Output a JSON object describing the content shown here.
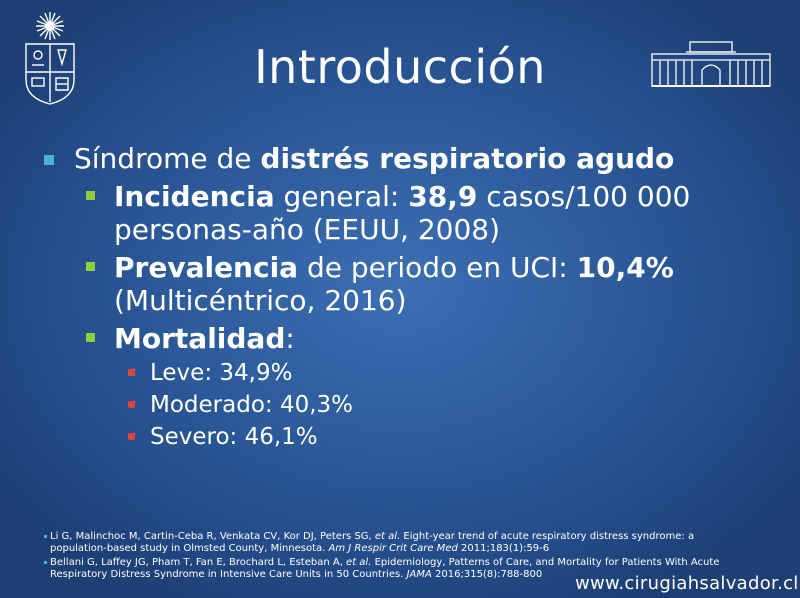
{
  "slide": {
    "title": "Introducción",
    "bullet1": {
      "prefix": "Síndrome de ",
      "bold": "distrés respiratorio agudo"
    },
    "incidencia": {
      "bold": "Incidencia",
      "mid": " general: ",
      "bold2": "38,9",
      "rest": " casos/100 000 personas-año (EEUU, 2008)"
    },
    "prevalencia": {
      "bold": "Prevalencia",
      "mid": " de periodo en UCI: ",
      "bold2": "10,4%",
      "rest": " (Multicéntrico, 2016)"
    },
    "mortalidad": {
      "bold": "Mortalidad",
      "rest": ":"
    },
    "mortality_items": [
      "Leve: 34,9%",
      "Moderado: 40,3%",
      "Severo: 46,1%"
    ]
  },
  "references": [
    {
      "text": "Li G, Malinchoc M, Cartin-Ceba R, Venkata CV, Kor DJ, Peters SG, ",
      "etal": "et al.",
      "text2": " Eight-year trend of acute respiratory distress syndrome: a population-based study in Olmsted County, Minnesota. ",
      "journal": "Am J Respir Crit Care Med",
      "cite": " 2011;183(1):59-6"
    },
    {
      "text": "Bellani G, Laffey JG, Pham T, Fan E, Brochard L, Esteban A, ",
      "etal": "et al.",
      "text2": " Epidemiology, Patterns of Care, and Mortality for Patients With Acute Respiratory Distress Syndrome in Intensive Care Units in 50 Countries. ",
      "journal": "JAMA",
      "cite": " 2016;315(8):788-800"
    }
  ],
  "footer": {
    "url": "www.cirugiahsalvador.cl"
  },
  "colors": {
    "bullet_level1": "#4fb0d6",
    "bullet_level2": "#8fcf3e",
    "bullet_level3": "#e0443f"
  },
  "icons": {
    "left_logo": "university-crest-icon",
    "right_logo": "building-facade-icon"
  }
}
